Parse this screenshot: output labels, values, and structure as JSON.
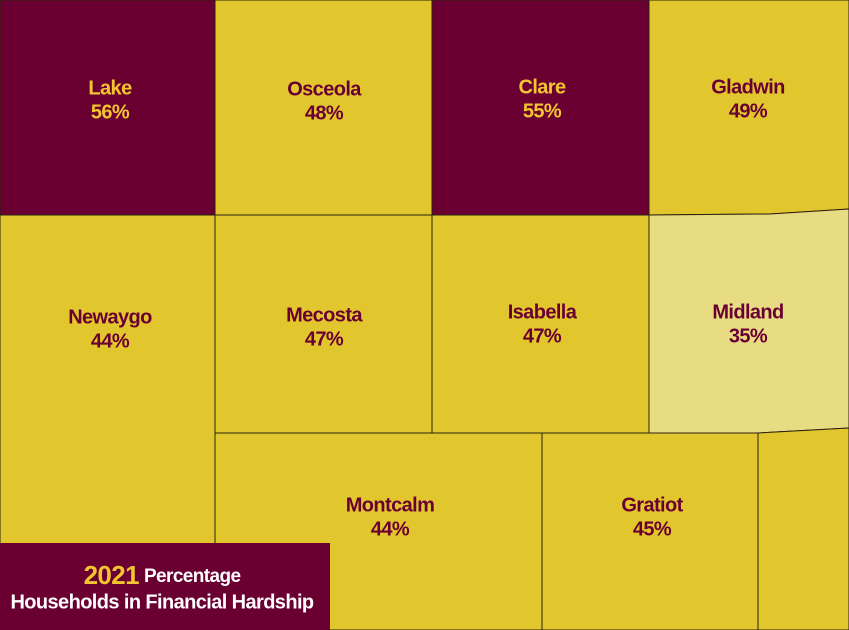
{
  "map": {
    "counties": [
      {
        "name": "Lake",
        "percent": "56%",
        "color": "#6a0032",
        "label_color": "#f2c530"
      },
      {
        "name": "Osceola",
        "percent": "48%",
        "color": "#e1c72d",
        "label_color": "#6a0032"
      },
      {
        "name": "Clare",
        "percent": "55%",
        "color": "#6a0032",
        "label_color": "#f2c530"
      },
      {
        "name": "Gladwin",
        "percent": "49%",
        "color": "#e1c72d",
        "label_color": "#6a0032"
      },
      {
        "name": "Newaygo",
        "percent": "44%",
        "color": "#e1c72d",
        "label_color": "#6a0032"
      },
      {
        "name": "Mecosta",
        "percent": "47%",
        "color": "#e1c72d",
        "label_color": "#6a0032"
      },
      {
        "name": "Isabella",
        "percent": "47%",
        "color": "#e1c72d",
        "label_color": "#6a0032"
      },
      {
        "name": "Midland",
        "percent": "35%",
        "color": "#e8dc82",
        "label_color": "#6a0032"
      },
      {
        "name": "Montcalm",
        "percent": "44%",
        "color": "#e1c72d",
        "label_color": "#6a0032"
      },
      {
        "name": "Gratiot",
        "percent": "45%",
        "color": "#e1c72d",
        "label_color": "#6a0032"
      }
    ],
    "legend": {
      "year": "2021",
      "line1": "Percentage",
      "line2": "Households in Financial Hardship"
    }
  }
}
